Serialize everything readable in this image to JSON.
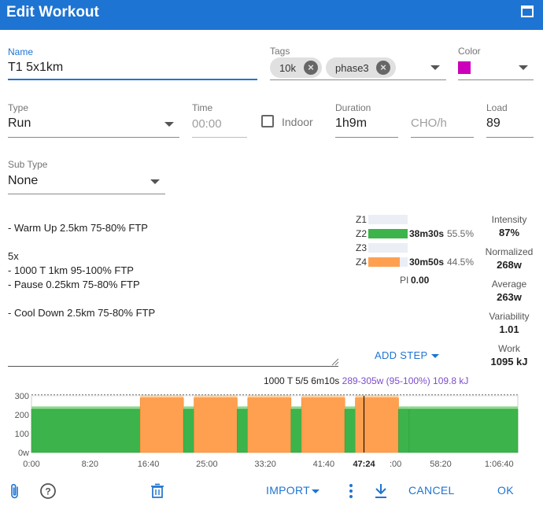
{
  "dialog": {
    "title": "Edit Workout"
  },
  "name": {
    "label": "Name",
    "value": "T1 5x1km"
  },
  "tags": {
    "label": "Tags",
    "items": [
      "10k",
      "phase3"
    ]
  },
  "color": {
    "label": "Color",
    "value": "#cc00bb"
  },
  "type": {
    "label": "Type",
    "value": "Run"
  },
  "time": {
    "label": "Time",
    "placeholder": "00:00"
  },
  "indoor": {
    "label": "Indoor",
    "checked": false
  },
  "duration": {
    "label": "Duration",
    "value": "1h9m"
  },
  "cho": {
    "placeholder": "CHO/h"
  },
  "load": {
    "label": "Load",
    "value": "89"
  },
  "subtype": {
    "label": "Sub Type",
    "value": "None"
  },
  "workout_text": [
    "- Warm Up 2.5km 75-80% FTP",
    "",
    "5x",
    "- 1000 T 1km 95-100% FTP",
    "- Pause 0.25km 75-80% FTP",
    "",
    "- Cool Down 2.5km 75-80% FTP"
  ],
  "zones": [
    {
      "label": "Z1",
      "time": "",
      "pct": "",
      "fraction": 0,
      "color": "#3cb44b"
    },
    {
      "label": "Z2",
      "time": "38m30s",
      "pct": "55.5%",
      "fraction": 1.0,
      "color": "#3cb44b"
    },
    {
      "label": "Z3",
      "time": "",
      "pct": "",
      "fraction": 0,
      "color": "#ffa050"
    },
    {
      "label": "Z4",
      "time": "30m50s",
      "pct": "44.5%",
      "fraction": 0.8,
      "color": "#ffa050"
    }
  ],
  "pi": {
    "label": "PI",
    "value": "0.00"
  },
  "stats": {
    "intensity": {
      "label": "Intensity",
      "value": "87%"
    },
    "normalized": {
      "label": "Normalized",
      "value": "268w"
    },
    "average": {
      "label": "Average",
      "value": "263w"
    },
    "variability": {
      "label": "Variability",
      "value": "1.01"
    },
    "work": {
      "label": "Work",
      "value": "1095 kJ"
    }
  },
  "add_step": {
    "label": "ADD STEP"
  },
  "hover_info": {
    "step": "1000 T 5/5 6m10s",
    "detail": "289-305w (95-100%) 109.8 kJ"
  },
  "chart_data": {
    "type": "area",
    "y_ticks": [
      "300",
      "200",
      "100",
      "0w"
    ],
    "ylim": [
      0,
      300
    ],
    "x_ticks": [
      "0:00",
      "8:20",
      "16:40",
      "25:00",
      "33:20",
      "41:40",
      "47:24",
      ":00",
      "58:20",
      "1:06:40"
    ],
    "cursor_label": "47:24",
    "colors": {
      "easy": "#3cb44b",
      "hard": "#ffa050",
      "easy_band": "#8fd88f",
      "hard_band": "#ffd3a8"
    },
    "ftp_line": 305,
    "segments": [
      {
        "start_min": 0.0,
        "end_min": 15.5,
        "low": 229,
        "high": 244,
        "zone": "easy"
      },
      {
        "start_min": 15.5,
        "end_min": 21.67,
        "low": 289,
        "high": 305,
        "zone": "hard"
      },
      {
        "start_min": 21.67,
        "end_min": 23.17,
        "low": 229,
        "high": 244,
        "zone": "easy"
      },
      {
        "start_min": 23.17,
        "end_min": 29.33,
        "low": 289,
        "high": 305,
        "zone": "hard"
      },
      {
        "start_min": 29.33,
        "end_min": 30.83,
        "low": 229,
        "high": 244,
        "zone": "easy"
      },
      {
        "start_min": 30.83,
        "end_min": 37.0,
        "low": 289,
        "high": 305,
        "zone": "hard"
      },
      {
        "start_min": 37.0,
        "end_min": 38.5,
        "low": 229,
        "high": 244,
        "zone": "easy"
      },
      {
        "start_min": 38.5,
        "end_min": 44.67,
        "low": 289,
        "high": 305,
        "zone": "hard"
      },
      {
        "start_min": 44.67,
        "end_min": 46.17,
        "low": 229,
        "high": 244,
        "zone": "easy"
      },
      {
        "start_min": 46.17,
        "end_min": 52.33,
        "low": 289,
        "high": 305,
        "zone": "hard"
      },
      {
        "start_min": 52.33,
        "end_min": 53.83,
        "low": 229,
        "high": 244,
        "zone": "easy"
      },
      {
        "start_min": 53.83,
        "end_min": 69.33,
        "low": 229,
        "high": 244,
        "zone": "easy"
      }
    ],
    "x_range_min": [
      0,
      69.33
    ],
    "cursor_min": 47.4
  },
  "toolbar": {
    "import": "IMPORT",
    "cancel": "CANCEL",
    "ok": "OK"
  }
}
